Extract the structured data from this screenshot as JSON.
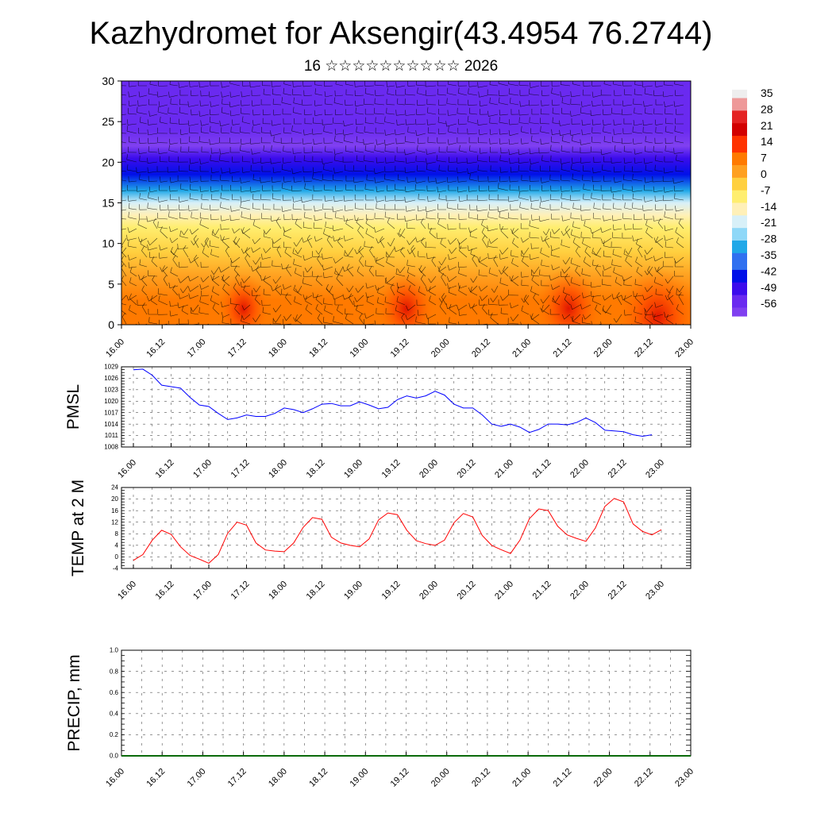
{
  "title": "Kazhydromet for Aksengir(43.4954 76.2744)",
  "subtitle": "16 ☆☆☆☆☆☆☆☆☆☆ 2026",
  "time_labels": [
    "16.00",
    "16.12",
    "17.00",
    "17.12",
    "18.00",
    "18.12",
    "19.00",
    "19.12",
    "20.00",
    "20.12",
    "21.00",
    "21.12",
    "22.00",
    "22.12",
    "23.00"
  ],
  "colors": {
    "pmsl_line": "#0000ff",
    "temp_line": "#ff0000",
    "grid": "#555555",
    "colorbar": [
      "#eeeeee",
      "#ee9999",
      "#e42222",
      "#d20000",
      "#ff3300",
      "#ff7a00",
      "#ffa020",
      "#ffd040",
      "#ffee70",
      "#fff0b8",
      "#d8f0f8",
      "#8fd8f8",
      "#20a8e8",
      "#3070f0",
      "#0010e8",
      "#3c0cec",
      "#6a2af0",
      "#8040f0"
    ]
  },
  "chart_data": [
    {
      "type": "heatmap",
      "name": "temperature-wind-cross-section",
      "ylim": [
        0,
        30
      ],
      "yticks": [
        0,
        5,
        10,
        15,
        20,
        25,
        30
      ],
      "x_ticks": [
        "16.00",
        "16.12",
        "17.00",
        "17.12",
        "18.00",
        "18.12",
        "19.00",
        "19.12",
        "20.00",
        "20.12",
        "21.00",
        "21.12",
        "22.00",
        "22.12",
        "23.00"
      ],
      "colorbar_labels": [
        "35",
        "28",
        "21",
        "14",
        "7",
        "0",
        "-7",
        "-14",
        "-21",
        "-28",
        "-35",
        "-42",
        "-49",
        "-56"
      ],
      "profile": [
        {
          "level": 0,
          "value": 10
        },
        {
          "level": 3,
          "value": 7
        },
        {
          "level": 6,
          "value": 3
        },
        {
          "level": 9,
          "value": -3
        },
        {
          "level": 12,
          "value": -10
        },
        {
          "level": 13.5,
          "value": -15
        },
        {
          "level": 15,
          "value": -22
        },
        {
          "level": 16.5,
          "value": -30
        },
        {
          "level": 18.5,
          "value": -40
        },
        {
          "level": 20.5,
          "value": -50
        },
        {
          "level": 22,
          "value": -58
        },
        {
          "level": 24,
          "value": -54
        },
        {
          "level": 30,
          "value": -52
        }
      ],
      "warm_spots": [
        {
          "x_label": "17.12",
          "level": 2,
          "value": 16
        },
        {
          "x_label": "19.12",
          "level": 2,
          "value": 18
        },
        {
          "x_label": "21.12",
          "level": 2,
          "value": 20
        },
        {
          "x_label": "22.12",
          "level": 1,
          "value": 25
        }
      ]
    },
    {
      "type": "line",
      "name": "pmsl",
      "ylabel": "PMSL",
      "ylim": [
        1008,
        1029
      ],
      "yticks": [
        1008,
        1011,
        1014,
        1017,
        1020,
        1023,
        1026,
        1029
      ],
      "x_ticks": [
        "16.00",
        "16.12",
        "17.00",
        "17.12",
        "18.00",
        "18.12",
        "19.00",
        "19.12",
        "20.00",
        "20.12",
        "21.00",
        "21.12",
        "22.00",
        "22.12",
        "23.00"
      ],
      "values": [
        1028.2,
        1028.4,
        1026.8,
        1024.2,
        1023.8,
        1023.4,
        1021.0,
        1019.0,
        1018.6,
        1016.8,
        1015.2,
        1015.6,
        1016.4,
        1016.0,
        1016.0,
        1016.8,
        1018.2,
        1017.8,
        1017.0,
        1018.0,
        1019.2,
        1019.4,
        1018.8,
        1018.8,
        1019.8,
        1019.0,
        1018.0,
        1018.4,
        1020.4,
        1021.4,
        1020.8,
        1021.4,
        1022.6,
        1021.6,
        1019.2,
        1018.2,
        1018.2,
        1016.4,
        1014.0,
        1013.4,
        1014.0,
        1013.2,
        1011.8,
        1012.6,
        1014.0,
        1014.0,
        1013.8,
        1014.4,
        1015.6,
        1014.4,
        1012.4,
        1012.2,
        1012.0,
        1011.2,
        1010.8,
        1011.2
      ]
    },
    {
      "type": "line",
      "name": "temp-2m",
      "ylabel": "TEMP at 2 M",
      "ylim": [
        -4,
        24
      ],
      "yticks": [
        -4,
        0,
        4,
        8,
        12,
        16,
        20,
        24
      ],
      "x_ticks": [
        "16.00",
        "16.12",
        "17.00",
        "17.12",
        "18.00",
        "18.12",
        "19.00",
        "19.12",
        "20.00",
        "20.12",
        "21.00",
        "21.12",
        "22.00",
        "22.12",
        "23.00"
      ],
      "values": [
        -1.2,
        0.8,
        5.8,
        9.2,
        7.8,
        3.5,
        0.5,
        -0.8,
        -2.2,
        0.8,
        8.2,
        12.0,
        11.0,
        4.8,
        2.4,
        2.0,
        1.8,
        4.8,
        10.2,
        13.6,
        13.0,
        6.8,
        4.8,
        4.0,
        3.5,
        6.2,
        12.8,
        15.2,
        14.6,
        9.2,
        5.6,
        4.6,
        4.0,
        5.8,
        11.8,
        15.0,
        13.8,
        7.4,
        4.0,
        2.5,
        1.2,
        5.8,
        13.2,
        16.6,
        16.0,
        10.6,
        7.6,
        6.4,
        5.4,
        10.0,
        17.4,
        20.2,
        19.0,
        11.4,
        8.8,
        7.6,
        9.4
      ]
    },
    {
      "type": "bar",
      "name": "precip",
      "ylabel": "PRECIP, mm",
      "ylim": [
        0,
        1
      ],
      "yticks": [
        "0.0",
        "0.2",
        "0.4",
        "0.6",
        "0.8",
        "1.0"
      ],
      "x_ticks": [
        "16.00",
        "16.12",
        "17.00",
        "17.12",
        "18.00",
        "18.12",
        "19.00",
        "19.12",
        "20.00",
        "20.12",
        "21.00",
        "21.12",
        "22.00",
        "22.12",
        "23.00"
      ],
      "values": []
    }
  ]
}
